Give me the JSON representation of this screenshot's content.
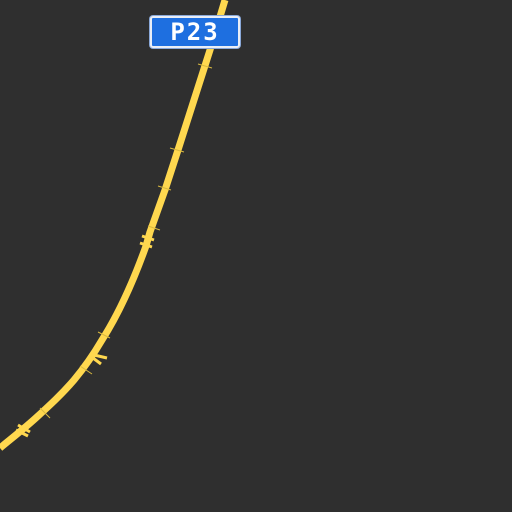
{
  "map": {
    "background_color": "#2f2f2f",
    "road": {
      "type": "primary-road",
      "color": "#ffd84f",
      "ref": "P23"
    },
    "shield": {
      "label": "P23",
      "background_color": "#1e6fe0",
      "border_color": "#e9eef7"
    }
  }
}
